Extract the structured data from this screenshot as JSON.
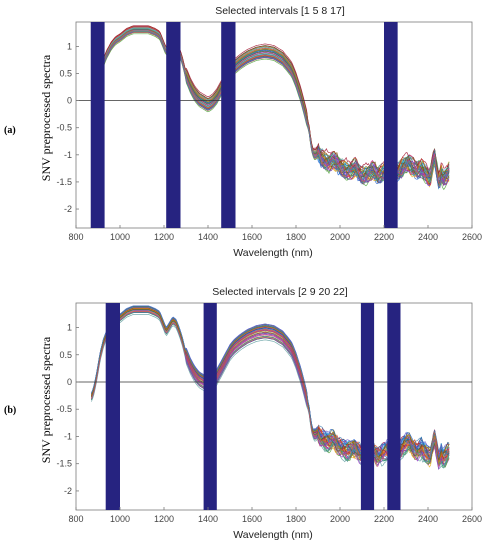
{
  "chart_data": [
    {
      "panel_label": "(a)",
      "type": "line",
      "title": "Selected intervals [1 5 8 17]",
      "xlabel": "Wavelength (nm)",
      "ylabel": "SNV preprocessed spectra",
      "xlim": [
        800,
        2600
      ],
      "ylim": [
        -2.35,
        1.45
      ],
      "xticks": [
        800,
        1000,
        1200,
        1400,
        1600,
        1800,
        2000,
        2200,
        2400,
        2600
      ],
      "yticks": [
        1,
        0.5,
        0,
        -0.5,
        -1,
        -1.5,
        -2
      ],
      "ytick_labels": [
        "1",
        "0.5",
        "0",
        "-0.5",
        "-1",
        "-1.5",
        "-2"
      ],
      "zero_line": 0,
      "highlight_color": "#262380",
      "highlighted_intervals_nm": [
        [
          867,
          930
        ],
        [
          1210,
          1275
        ],
        [
          1460,
          1525
        ],
        [
          2200,
          2262
        ]
      ],
      "series_count": 40,
      "x_range_nm": [
        870,
        2500
      ],
      "mean_spectrum": {
        "x": [
          870,
          880,
          895,
          910,
          925,
          940,
          960,
          980,
          1000,
          1030,
          1060,
          1100,
          1130,
          1160,
          1180,
          1195,
          1210,
          1225,
          1240,
          1255,
          1270,
          1285,
          1300,
          1320,
          1340,
          1360,
          1380,
          1400,
          1420,
          1440,
          1460,
          1480,
          1500,
          1520,
          1550,
          1580,
          1620,
          1660,
          1700,
          1740,
          1780,
          1800,
          1820,
          1840,
          1860,
          1870,
          1880,
          1890,
          1900,
          1910,
          1930,
          1950,
          1970,
          1990,
          2010,
          2030,
          2050,
          2070,
          2090,
          2110,
          2130,
          2150,
          2170,
          2190,
          2210,
          2230,
          2250,
          2270,
          2290,
          2310,
          2330,
          2350,
          2370,
          2390,
          2410,
          2420,
          2430,
          2440,
          2450,
          2460,
          2470,
          2480,
          2490,
          2500
        ],
        "y": [
          -0.3,
          -0.2,
          0.1,
          0.45,
          0.7,
          0.85,
          1.0,
          1.1,
          1.15,
          1.25,
          1.3,
          1.3,
          1.3,
          1.25,
          1.2,
          1.05,
          0.9,
          1.0,
          1.1,
          1.05,
          0.9,
          0.7,
          0.45,
          0.25,
          0.1,
          0.0,
          -0.05,
          -0.1,
          -0.05,
          0.05,
          0.2,
          0.35,
          0.5,
          0.6,
          0.7,
          0.78,
          0.85,
          0.88,
          0.85,
          0.75,
          0.55,
          0.35,
          0.1,
          -0.2,
          -0.55,
          -0.85,
          -1.0,
          -1.0,
          -0.95,
          -1.05,
          -1.1,
          -1.15,
          -1.1,
          -1.2,
          -1.25,
          -1.3,
          -1.3,
          -1.25,
          -1.35,
          -1.4,
          -1.35,
          -1.3,
          -1.4,
          -1.35,
          -1.3,
          -1.35,
          -1.35,
          -1.3,
          -1.2,
          -1.15,
          -1.25,
          -1.3,
          -1.25,
          -1.35,
          -1.45,
          -1.2,
          -1.05,
          -1.3,
          -1.5,
          -1.35,
          -1.45,
          -1.4,
          -1.35,
          -1.3
        ]
      }
    },
    {
      "panel_label": "(b)",
      "type": "line",
      "title": "Selected intervals [2 9 20 22]",
      "xlabel": "Wavelength (nm)",
      "ylabel": "SNV preprocessed spectra",
      "xlim": [
        800,
        2600
      ],
      "ylim": [
        -2.35,
        1.45
      ],
      "xticks": [
        800,
        1000,
        1200,
        1400,
        1600,
        1800,
        2000,
        2200,
        2400,
        2600
      ],
      "yticks": [
        1,
        0.5,
        0,
        -0.5,
        -1,
        -1.5,
        -2
      ],
      "ytick_labels": [
        "1",
        "0.5",
        "0",
        "-0.5",
        "-1",
        "-1.5",
        "-2"
      ],
      "zero_line": 0,
      "highlight_color": "#262380",
      "highlighted_intervals_nm": [
        [
          935,
          1000
        ],
        [
          1380,
          1440
        ],
        [
          2095,
          2155
        ],
        [
          2215,
          2275
        ]
      ],
      "series_count": 40,
      "x_range_nm": [
        870,
        2500
      ],
      "mean_spectrum": {
        "x": [
          870,
          880,
          895,
          910,
          925,
          940,
          960,
          980,
          1000,
          1030,
          1060,
          1100,
          1130,
          1160,
          1180,
          1195,
          1210,
          1225,
          1240,
          1255,
          1270,
          1285,
          1300,
          1320,
          1340,
          1360,
          1380,
          1400,
          1420,
          1440,
          1460,
          1480,
          1500,
          1520,
          1550,
          1580,
          1620,
          1660,
          1700,
          1740,
          1780,
          1800,
          1820,
          1840,
          1860,
          1870,
          1880,
          1890,
          1900,
          1910,
          1930,
          1950,
          1970,
          1990,
          2010,
          2030,
          2050,
          2070,
          2090,
          2110,
          2130,
          2150,
          2170,
          2190,
          2210,
          2230,
          2250,
          2270,
          2290,
          2310,
          2330,
          2350,
          2370,
          2390,
          2410,
          2420,
          2430,
          2440,
          2450,
          2460,
          2470,
          2480,
          2490,
          2500
        ],
        "y": [
          -0.3,
          -0.2,
          0.1,
          0.45,
          0.7,
          0.85,
          1.0,
          1.1,
          1.15,
          1.25,
          1.3,
          1.3,
          1.3,
          1.25,
          1.2,
          1.05,
          0.9,
          1.0,
          1.1,
          1.05,
          0.9,
          0.7,
          0.45,
          0.25,
          0.1,
          0.0,
          -0.05,
          -0.1,
          -0.05,
          0.05,
          0.2,
          0.35,
          0.5,
          0.6,
          0.7,
          0.78,
          0.85,
          0.88,
          0.85,
          0.75,
          0.55,
          0.35,
          0.1,
          -0.2,
          -0.55,
          -0.85,
          -1.0,
          -1.0,
          -0.95,
          -1.05,
          -1.1,
          -1.15,
          -1.1,
          -1.2,
          -1.25,
          -1.3,
          -1.3,
          -1.25,
          -1.35,
          -1.4,
          -1.35,
          -1.3,
          -1.4,
          -1.35,
          -1.3,
          -1.35,
          -1.35,
          -1.3,
          -1.2,
          -1.15,
          -1.25,
          -1.3,
          -1.25,
          -1.35,
          -1.45,
          -1.2,
          -1.05,
          -1.3,
          -1.5,
          -1.35,
          -1.45,
          -1.4,
          -1.35,
          -1.3
        ]
      }
    }
  ]
}
